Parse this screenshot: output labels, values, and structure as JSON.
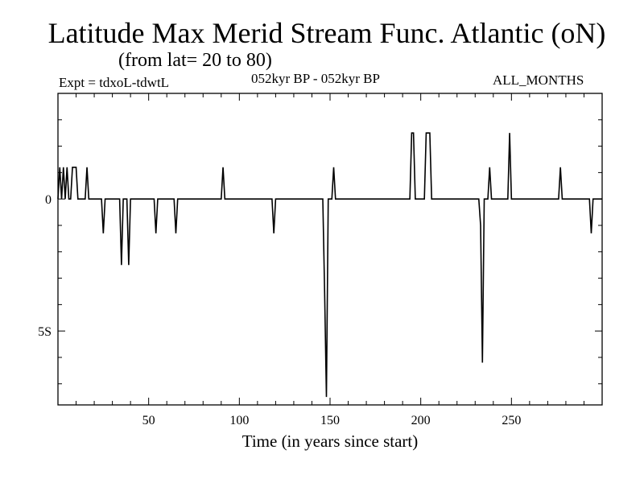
{
  "header": {
    "title": "Latitude Max Merid Stream Func. Atlantic (oN)",
    "subtitle": "(from lat= 20 to 80)",
    "experiment": "Expt = tdxoL-tdwtL",
    "period": "052kyr BP - 052kyr BP",
    "months": "ALL_MONTHS"
  },
  "chart_data": {
    "type": "line",
    "title": "Latitude Max Merid Stream Func. Atlantic (oN)",
    "subtitle": "(from lat= 20 to 80)",
    "xlabel": "Time (in years since start)",
    "ylabel": "",
    "xlim": [
      0,
      300
    ],
    "ylim": [
      -7.8,
      4.0
    ],
    "x_ticks": [
      50,
      100,
      150,
      200,
      250
    ],
    "x_tick_labels": [
      "50",
      "100",
      "150",
      "200",
      "250"
    ],
    "y_ticks": [
      0,
      -5
    ],
    "y_tick_labels": [
      "0",
      "5S"
    ],
    "series": [
      {
        "name": "tdxoL-tdwtL",
        "x": [
          0,
          1,
          2,
          3,
          4,
          5,
          6,
          7,
          8,
          9,
          10,
          11,
          12,
          13,
          14,
          15,
          16,
          17,
          18,
          19,
          20,
          24,
          25,
          26,
          34,
          35,
          36,
          38,
          39,
          40,
          53,
          54,
          55,
          64,
          65,
          66,
          90,
          91,
          92,
          118,
          119,
          120,
          146,
          147,
          148,
          149,
          150,
          151,
          152,
          153,
          194,
          195,
          196,
          197,
          198,
          202,
          203,
          204,
          205,
          206,
          232,
          233,
          234,
          235,
          237,
          238,
          239,
          247,
          248,
          249,
          250,
          276,
          277,
          278,
          293,
          294,
          295,
          300
        ],
        "y": [
          0,
          1.2,
          0,
          1.2,
          0,
          1.2,
          0,
          0,
          1.2,
          1.2,
          1.2,
          0,
          0,
          0,
          0,
          0,
          1.2,
          0,
          0,
          0,
          0,
          0,
          -1.3,
          0,
          0,
          -2.5,
          0,
          0,
          -2.5,
          0,
          0,
          -1.3,
          0,
          0,
          -1.3,
          0,
          0,
          1.2,
          0,
          0,
          -1.3,
          0,
          0,
          -3.5,
          -7.5,
          0,
          0,
          0,
          1.2,
          0,
          0,
          2.5,
          2.5,
          0,
          0,
          0,
          2.5,
          2.5,
          2.5,
          0,
          0,
          -1.0,
          -6.2,
          0,
          0,
          1.2,
          0,
          0,
          0,
          2.5,
          0,
          0,
          1.2,
          0,
          0,
          -1.3,
          0,
          0
        ]
      }
    ],
    "colors": {
      "line": "#000000",
      "frame": "#000000",
      "background": "#ffffff"
    }
  }
}
